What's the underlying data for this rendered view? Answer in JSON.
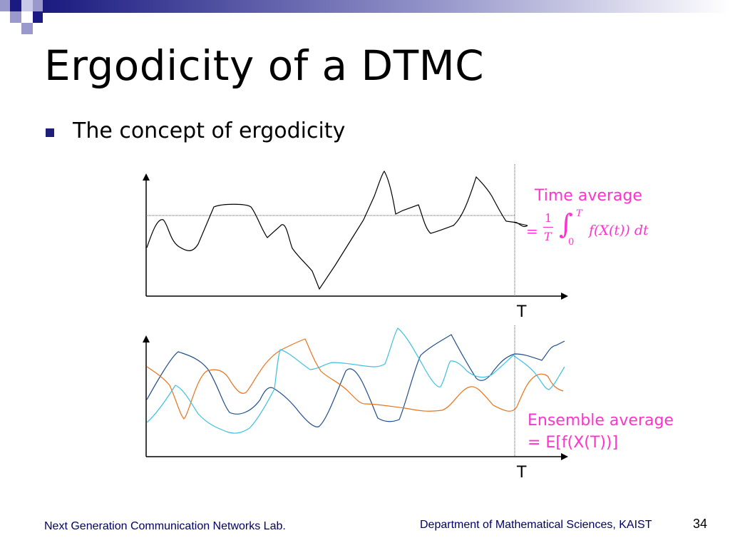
{
  "slide": {
    "title": "Ergodicity of a DTMC",
    "bullet": "The concept of ergodicity",
    "page_number": "34"
  },
  "top_plot": {
    "time_label": "T",
    "annotation": "Time average",
    "formula": {
      "equals": "=",
      "numerator": "1",
      "denominator": "T",
      "integral": "∫",
      "upper": "T",
      "lower": "0",
      "integrand": "f(X(t)) dt"
    }
  },
  "bottom_plot": {
    "time_label": "T",
    "annotation_line1": "Ensemble average",
    "annotation_line2": "= E[f(X(T))]"
  },
  "footer": {
    "left": "Next Generation Communication Networks Lab.",
    "right": "Department of Mathematical Sciences, KAIST"
  },
  "colors": {
    "accent": "#ff33cc",
    "series_dark": "#1f4e8c",
    "series_orange": "#e8731c",
    "series_light": "#3fc0e0",
    "bullet": "#1f1f7a",
    "footer_text": "#000066"
  }
}
